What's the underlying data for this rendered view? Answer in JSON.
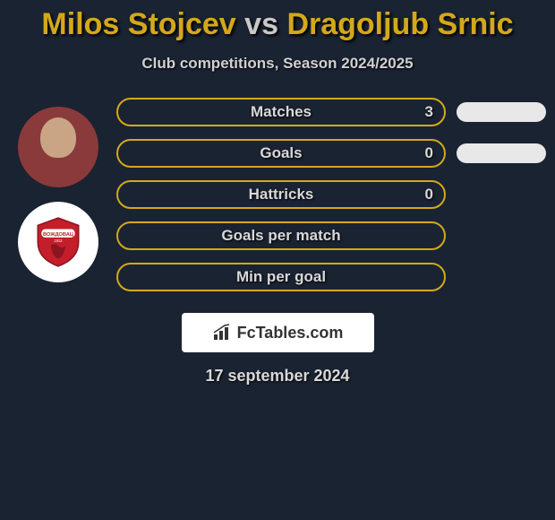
{
  "title": {
    "player1": "Milos Stojcev",
    "vs": "vs",
    "player2": "Dragoljub Srnic"
  },
  "subtitle": "Club competitions, Season 2024/2025",
  "stats": [
    {
      "label": "Matches",
      "value_left": "3",
      "border_color": "#d4a81a",
      "has_side": true,
      "side_color": "#e8e8e8"
    },
    {
      "label": "Goals",
      "value_left": "0",
      "border_color": "#d4a81a",
      "has_side": true,
      "side_color": "#e8e8e8"
    },
    {
      "label": "Hattricks",
      "value_left": "0",
      "border_color": "#d4a81a",
      "has_side": false
    },
    {
      "label": "Goals per match",
      "value_left": "",
      "border_color": "#d4a81a",
      "has_side": false
    },
    {
      "label": "Min per goal",
      "value_left": "",
      "border_color": "#d4a81a",
      "has_side": false
    }
  ],
  "club_logo": {
    "primary_color": "#c41e2a",
    "text": "ВОЖДОВАЦ"
  },
  "footer": {
    "brand": "FcTables.com"
  },
  "date": "17 september 2024",
  "colors": {
    "background": "#1a2332",
    "accent": "#d4a81a",
    "text": "#d8d8d8",
    "side_pill": "#e8e8e8"
  }
}
